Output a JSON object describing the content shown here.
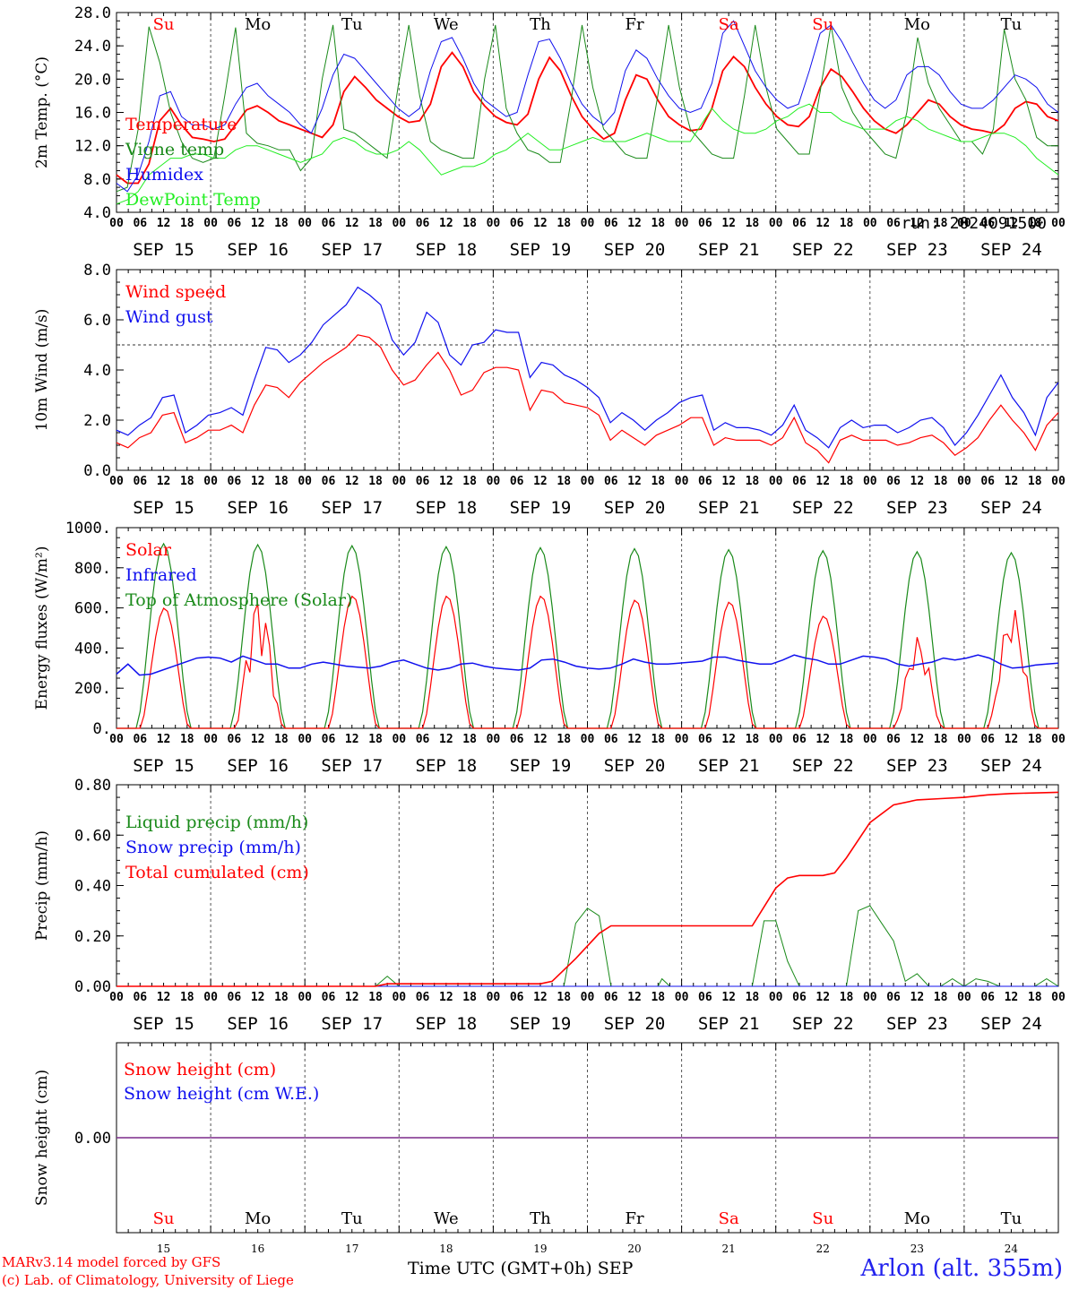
{
  "run_label": "run: 2024091500",
  "footer": {
    "model": "MARv3.14 model forced by GFS",
    "lab": "(c) Lab. of Climatology, University of Liege",
    "time_axis": "Time UTC (GMT+0h) SEP",
    "station": "Arlon (alt. 355m)"
  },
  "days": [
    {
      "dow": "Su",
      "date": "SEP 15",
      "num": "15",
      "weekend": true
    },
    {
      "dow": "Mo",
      "date": "SEP 16",
      "num": "16",
      "weekend": false
    },
    {
      "dow": "Tu",
      "date": "SEP 17",
      "num": "17",
      "weekend": false
    },
    {
      "dow": "We",
      "date": "SEP 18",
      "num": "18",
      "weekend": false
    },
    {
      "dow": "Th",
      "date": "SEP 19",
      "num": "19",
      "weekend": false
    },
    {
      "dow": "Fr",
      "date": "SEP 20",
      "num": "20",
      "weekend": false
    },
    {
      "dow": "Sa",
      "date": "SEP 21",
      "num": "21",
      "weekend": true
    },
    {
      "dow": "Su",
      "date": "SEP 22",
      "num": "22",
      "weekend": true
    },
    {
      "dow": "Mo",
      "date": "SEP 23",
      "num": "23",
      "weekend": false
    },
    {
      "dow": "Tu",
      "date": "SEP 24",
      "num": "24",
      "weekend": false
    }
  ],
  "hour_ticks": [
    "00",
    "06",
    "12",
    "18"
  ],
  "colors": {
    "red": "#ff0000",
    "green": "#1a8a1a",
    "blue": "#1010ee",
    "lightgreen": "#22ee22",
    "purple": "#7b2a8a",
    "weekend": "#ff0000"
  },
  "chart_data": [
    {
      "type": "line",
      "ylabel": "2m Temp. (°C)",
      "ylim": [
        4,
        28
      ],
      "yticks": [
        "4.0",
        "8.0",
        "12.0",
        "16.0",
        "20.0",
        "24.0",
        "28.0"
      ],
      "x": "hours since SEP 15 00 UTC, 3-hourly (0 to 240)",
      "series": [
        {
          "name": "Temperature",
          "color": "red",
          "values": [
            8.5,
            7.5,
            7.5,
            9.8,
            15.0,
            16.5,
            14.5,
            13.0,
            12.8,
            12.5,
            12.8,
            14.5,
            16.3,
            16.8,
            16.0,
            15.0,
            14.5,
            14.0,
            13.5,
            13.0,
            14.5,
            18.5,
            20.3,
            19.0,
            17.5,
            16.5,
            15.5,
            14.8,
            15.0,
            17.0,
            21.5,
            23.2,
            21.5,
            18.5,
            16.8,
            15.5,
            14.8,
            14.5,
            15.8,
            20.0,
            22.6,
            21.0,
            18.0,
            15.5,
            14.0,
            12.8,
            13.5,
            17.5,
            20.5,
            20.0,
            17.5,
            15.5,
            14.5,
            13.8,
            14.0,
            16.5,
            21.0,
            22.7,
            21.5,
            19.0,
            17.0,
            15.5,
            14.5,
            14.3,
            15.5,
            19.0,
            21.2,
            20.3,
            18.5,
            16.5,
            15.0,
            14.0,
            13.5,
            14.5,
            16.0,
            17.5,
            17.0,
            15.5,
            14.5,
            14.0,
            13.8,
            13.5,
            14.5,
            16.5,
            17.3,
            17.0,
            15.5,
            15.0
          ]
        },
        {
          "name": "Vigne temp",
          "color": "green",
          "values": [
            6.5,
            7.0,
            14.0,
            26.3,
            22.0,
            16.0,
            12.5,
            10.5,
            10.0,
            10.5,
            18.0,
            26.2,
            13.5,
            12.3,
            12.0,
            11.5,
            11.5,
            9.0,
            10.5,
            20.0,
            26.5,
            14.0,
            13.5,
            12.5,
            11.5,
            10.5,
            19.0,
            26.5,
            18.0,
            12.5,
            11.5,
            11.0,
            10.5,
            10.5,
            20.0,
            26.5,
            16.5,
            13.5,
            11.5,
            11.0,
            10.0,
            10.0,
            17.5,
            26.5,
            19.0,
            14.0,
            12.5,
            11.0,
            10.5,
            10.5,
            18.0,
            26.5,
            19.0,
            14.0,
            12.5,
            11.0,
            10.5,
            10.5,
            18.0,
            26.5,
            19.0,
            14.0,
            12.5,
            11.0,
            11.0,
            18.5,
            26.5,
            19.0,
            16.0,
            14.0,
            12.5,
            11.0,
            10.5,
            16.0,
            25.0,
            19.5,
            16.5,
            14.5,
            12.5,
            12.5,
            11.0,
            14.0,
            26.0,
            20.0,
            17.5,
            13.0,
            12.0,
            12.0
          ]
        },
        {
          "name": "Humidex",
          "color": "blue",
          "values": [
            7.5,
            6.5,
            8.5,
            12.5,
            18.0,
            18.5,
            15.5,
            14.5,
            14.5,
            14.0,
            14.5,
            17.0,
            19.0,
            19.5,
            18.0,
            17.0,
            16.0,
            14.5,
            13.5,
            16.5,
            20.5,
            23.0,
            22.5,
            21.0,
            19.5,
            18.0,
            16.5,
            15.5,
            16.5,
            21.0,
            24.5,
            25.0,
            22.5,
            19.5,
            17.5,
            16.5,
            15.5,
            16.0,
            20.5,
            24.5,
            24.8,
            22.5,
            19.5,
            17.0,
            15.5,
            14.5,
            16.0,
            21.0,
            23.5,
            22.5,
            20.0,
            18.0,
            16.5,
            16.0,
            16.5,
            19.5,
            25.5,
            27.0,
            24.0,
            21.0,
            19.0,
            17.5,
            16.5,
            17.0,
            21.0,
            25.5,
            26.5,
            24.5,
            22.0,
            19.5,
            17.5,
            16.5,
            17.5,
            20.5,
            21.5,
            21.5,
            20.5,
            18.5,
            17.0,
            16.5,
            16.5,
            17.5,
            19.0,
            20.5,
            20.0,
            19.0,
            17.0,
            16.0
          ]
        },
        {
          "name": "DewPoint Temp",
          "color": "lightgreen",
          "values": [
            5.0,
            5.5,
            6.5,
            8.5,
            9.5,
            10.5,
            10.5,
            11.0,
            11.0,
            10.5,
            10.5,
            11.5,
            12.0,
            12.0,
            11.5,
            11.0,
            10.5,
            10.0,
            10.5,
            11.0,
            12.5,
            13.0,
            12.5,
            11.5,
            11.0,
            11.0,
            11.5,
            12.5,
            11.5,
            10.0,
            8.5,
            9.0,
            9.5,
            9.5,
            10.0,
            11.0,
            11.5,
            12.5,
            13.5,
            12.5,
            11.5,
            11.5,
            12.0,
            12.5,
            13.0,
            12.5,
            12.5,
            12.5,
            13.0,
            13.5,
            13.0,
            12.5,
            12.5,
            12.5,
            14.5,
            16.5,
            15.0,
            14.0,
            13.5,
            13.5,
            14.0,
            15.0,
            15.5,
            16.5,
            17.0,
            16.0,
            16.0,
            15.0,
            14.5,
            14.0,
            14.0,
            14.0,
            15.0,
            15.5,
            15.0,
            14.0,
            13.5,
            13.0,
            12.5,
            12.5,
            13.0,
            13.5,
            13.5,
            13.0,
            12.0,
            10.5,
            9.5,
            8.5
          ]
        }
      ],
      "legend_placement": "top-left"
    },
    {
      "type": "line",
      "ylabel": "10m Wind (m/s)",
      "ylim": [
        0,
        8
      ],
      "yticks": [
        "0.0",
        "2.0",
        "4.0",
        "6.0",
        "8.0"
      ],
      "reference_line": 5,
      "series": [
        {
          "name": "Wind speed",
          "color": "red",
          "values": [
            1.1,
            0.9,
            1.3,
            1.5,
            2.2,
            2.3,
            1.1,
            1.3,
            1.6,
            1.6,
            1.8,
            1.5,
            2.6,
            3.4,
            3.3,
            2.9,
            3.5,
            3.9,
            4.3,
            4.6,
            4.9,
            5.4,
            5.3,
            4.9,
            4.0,
            3.4,
            3.6,
            4.2,
            4.7,
            4.0,
            3.0,
            3.2,
            3.9,
            4.1,
            4.1,
            4.0,
            2.4,
            3.2,
            3.1,
            2.7,
            2.6,
            2.5,
            2.2,
            1.2,
            1.6,
            1.3,
            1.0,
            1.4,
            1.6,
            1.8,
            2.1,
            2.1,
            1.0,
            1.3,
            1.2,
            1.2,
            1.2,
            1.0,
            1.3,
            2.1,
            1.1,
            0.8,
            0.3,
            1.2,
            1.4,
            1.2,
            1.2,
            1.2,
            1.0,
            1.1,
            1.3,
            1.4,
            1.1,
            0.6,
            0.9,
            1.3,
            2.0,
            2.6,
            2.0,
            1.5,
            0.8,
            1.8,
            2.3
          ]
        },
        {
          "name": "Wind gust",
          "color": "blue",
          "values": [
            1.6,
            1.4,
            1.8,
            2.1,
            2.9,
            3.0,
            1.5,
            1.8,
            2.2,
            2.3,
            2.5,
            2.2,
            3.6,
            4.9,
            4.8,
            4.3,
            4.6,
            5.1,
            5.8,
            6.2,
            6.6,
            7.3,
            7.0,
            6.6,
            5.2,
            4.6,
            5.1,
            6.3,
            5.9,
            4.6,
            4.2,
            5.0,
            5.1,
            5.6,
            5.5,
            5.5,
            3.7,
            4.3,
            4.2,
            3.8,
            3.6,
            3.3,
            2.9,
            1.9,
            2.3,
            2.0,
            1.6,
            2.0,
            2.3,
            2.7,
            2.9,
            3.0,
            1.6,
            1.9,
            1.7,
            1.7,
            1.6,
            1.4,
            1.8,
            2.6,
            1.6,
            1.3,
            0.9,
            1.7,
            2.0,
            1.7,
            1.8,
            1.8,
            1.5,
            1.7,
            2.0,
            2.1,
            1.7,
            1.0,
            1.5,
            2.2,
            3.0,
            3.8,
            2.9,
            2.3,
            1.4,
            2.9,
            3.5
          ]
        }
      ],
      "legend_placement": "top-left"
    },
    {
      "type": "line",
      "ylabel": "Energy fluxes (W/m²)",
      "ylim": [
        0,
        1000
      ],
      "yticks": [
        "0.",
        "200.",
        "400.",
        "600.",
        "800.",
        "1000."
      ],
      "series": [
        {
          "name": "Solar",
          "color": "red",
          "peaks": [
            600,
            660,
            660,
            660,
            660,
            640,
            630,
            560,
            460,
            610
          ]
        },
        {
          "name": "Infrared",
          "color": "blue",
          "values": [
            270,
            320,
            265,
            270,
            290,
            310,
            330,
            350,
            355,
            350,
            330,
            360,
            340,
            320,
            320,
            300,
            300,
            320,
            330,
            320,
            310,
            305,
            300,
            310,
            330,
            340,
            320,
            300,
            290,
            300,
            320,
            325,
            310,
            300,
            295,
            290,
            300,
            340,
            345,
            330,
            310,
            300,
            295,
            300,
            320,
            345,
            330,
            320,
            320,
            325,
            330,
            335,
            355,
            355,
            340,
            330,
            320,
            320,
            340,
            365,
            350,
            340,
            320,
            320,
            340,
            360,
            355,
            345,
            320,
            310,
            320,
            330,
            350,
            340,
            350,
            365,
            350,
            320,
            300,
            305,
            315,
            320,
            325
          ]
        },
        {
          "name": "Top of Atmosphere (Solar)",
          "color": "green",
          "peaks": [
            920,
            915,
            910,
            905,
            900,
            895,
            890,
            885,
            880,
            875
          ]
        }
      ],
      "legend_placement": "top-left"
    },
    {
      "type": "line",
      "ylabel": "Precip (mm/h)",
      "ylim": [
        0,
        0.8
      ],
      "yticks": [
        "0.00",
        "0.20",
        "0.40",
        "0.60",
        "0.80"
      ],
      "series": [
        {
          "name": "Liquid precip (mm/h)",
          "color": "green",
          "points": [
            [
              0,
              0
            ],
            [
              66,
              0
            ],
            [
              69,
              0.04
            ],
            [
              72,
              0
            ],
            [
              102,
              0
            ],
            [
              114,
              0
            ],
            [
              117,
              0.25
            ],
            [
              120,
              0.31
            ],
            [
              123,
              0.28
            ],
            [
              126,
              0
            ],
            [
              138,
              0
            ],
            [
              139,
              0.03
            ],
            [
              141,
              0
            ],
            [
              162,
              0
            ],
            [
              165,
              0.26
            ],
            [
              168,
              0.26
            ],
            [
              171,
              0.1
            ],
            [
              174,
              0
            ],
            [
              186,
              0
            ],
            [
              189,
              0.3
            ],
            [
              192,
              0.32
            ],
            [
              195,
              0.25
            ],
            [
              198,
              0.18
            ],
            [
              201,
              0.02
            ],
            [
              204,
              0.05
            ],
            [
              207,
              0
            ],
            [
              210,
              0
            ],
            [
              213,
              0.03
            ],
            [
              216,
              0
            ],
            [
              219,
              0.03
            ],
            [
              222,
              0.02
            ],
            [
              225,
              0
            ],
            [
              234,
              0
            ],
            [
              237,
              0.03
            ],
            [
              240,
              0
            ]
          ]
        },
        {
          "name": "Snow precip (mm/h)",
          "color": "blue",
          "points": [
            [
              0,
              0
            ],
            [
              240,
              0
            ]
          ]
        },
        {
          "name": "Total cumulated (cm)",
          "color": "red",
          "points": [
            [
              0,
              0
            ],
            [
              66,
              0
            ],
            [
              69,
              0.01
            ],
            [
              108,
              0.01
            ],
            [
              111,
              0.02
            ],
            [
              117,
              0.11
            ],
            [
              123,
              0.21
            ],
            [
              126,
              0.24
            ],
            [
              156,
              0.24
            ],
            [
              162,
              0.24
            ],
            [
              168,
              0.39
            ],
            [
              171,
              0.43
            ],
            [
              174,
              0.44
            ],
            [
              180,
              0.44
            ],
            [
              183,
              0.45
            ],
            [
              186,
              0.51
            ],
            [
              192,
              0.65
            ],
            [
              198,
              0.72
            ],
            [
              204,
              0.74
            ],
            [
              210,
              0.745
            ],
            [
              216,
              0.75
            ],
            [
              222,
              0.76
            ],
            [
              228,
              0.765
            ],
            [
              240,
              0.77
            ]
          ]
        }
      ],
      "legend_placement": "top-left"
    },
    {
      "type": "line",
      "ylabel": "Snow height (cm)",
      "yticks": [
        "0.00"
      ],
      "series": [
        {
          "name": "Snow height (cm)",
          "color": "red",
          "values": [
            0,
            0
          ]
        },
        {
          "name": "Snow height (cm W.E.)",
          "color": "blue",
          "values": [
            0,
            0
          ]
        }
      ],
      "legend_placement": "top-left"
    }
  ]
}
